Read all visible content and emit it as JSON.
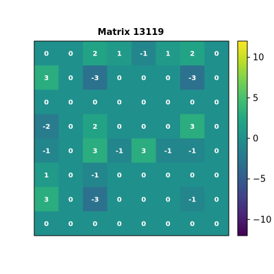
{
  "chart_data": {
    "type": "heatmap",
    "title": "Matrix 13119",
    "rows": 8,
    "cols": 8,
    "values": [
      [
        0,
        0,
        2,
        1,
        -1,
        1,
        2,
        0
      ],
      [
        3,
        0,
        -3,
        0,
        0,
        0,
        -3,
        0
      ],
      [
        0,
        0,
        0,
        0,
        0,
        0,
        0,
        0
      ],
      [
        -2,
        0,
        2,
        0,
        0,
        0,
        3,
        0
      ],
      [
        -1,
        0,
        3,
        -1,
        3,
        -1,
        -1,
        0
      ],
      [
        1,
        0,
        -1,
        0,
        0,
        0,
        0,
        0
      ],
      [
        3,
        0,
        -3,
        0,
        0,
        0,
        -1,
        0
      ],
      [
        0,
        0,
        0,
        0,
        0,
        0,
        0,
        0
      ]
    ],
    "colormap": "viridis",
    "vmin": -12,
    "vmax": 12,
    "colorbar": {
      "ticks": [
        -10,
        -5,
        0,
        5,
        10
      ],
      "tick_labels": [
        "−10",
        "−5",
        "0",
        "5",
        "10"
      ]
    },
    "show_axis_ticks": false,
    "grid": false,
    "legend": "colorbar-right"
  }
}
